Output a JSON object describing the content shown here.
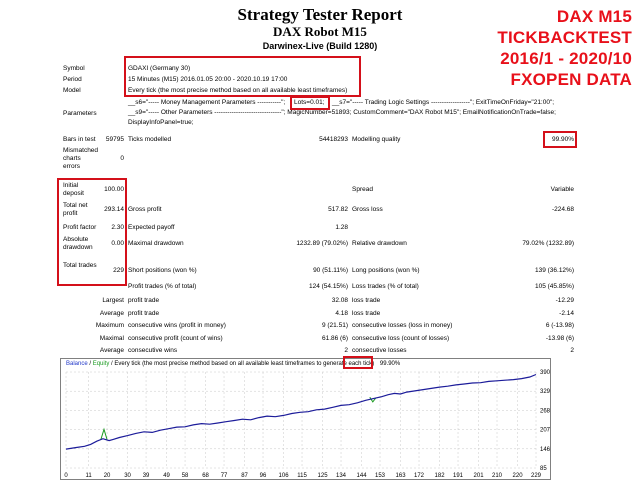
{
  "header": {
    "title": "Strategy Tester Report",
    "robot": "DAX Robot M15",
    "server": "Darwinex-Live (Build 1280)"
  },
  "overlay": [
    "DAX M15",
    "TICKBACKTEST",
    "2016/1 - 2020/10",
    "FXOPEN DATA"
  ],
  "settings": {
    "symbol_label": "Symbol",
    "symbol": "GDAXI (Germany 30)",
    "period_label": "Period",
    "period": "15 Minutes (M15) 2016.01.05 20:00 - 2020.10.19 17:00",
    "model_label": "Model",
    "model": "Every tick (the most precise method based on all available least timeframes)",
    "parameters_label": "Parameters",
    "params_line1_a": "__s6=\"----- Money Management Parameters -----------\";",
    "params_lots": "Lots=0.01;",
    "params_line1_b": "__s7=\"----- Trading Logic Settings ------------------\"; ExitTimeOnFriday=\"21:00\";",
    "params_line2": "__s9=\"----- Other Parameters -------------------------------\"; MagicNumber=51893; CustomComment=\"DAX Robot M15\"; EmailNotificationOnTrade=false;",
    "params_line3": "DisplayInfoPanel=true;"
  },
  "stats": {
    "bars_label": "Bars in test",
    "bars": "59795",
    "ticks_label": "Ticks modelled",
    "ticks": "54418293",
    "quality_label": "Modelling quality",
    "quality": "99.90%",
    "mismatched_label": "Mismatched charts errors",
    "mismatched": "0",
    "initial_deposit_label": "Initial deposit",
    "initial_deposit": "100.00",
    "spread_label": "Spread",
    "spread": "Variable",
    "net_profit_label": "Total net profit",
    "net_profit": "293.14",
    "gross_profit_label": "Gross profit",
    "gross_profit": "517.82",
    "gross_loss_label": "Gross loss",
    "gross_loss": "-224.68",
    "profit_factor_label": "Profit factor",
    "profit_factor": "2.30",
    "expected_payoff_label": "Expected payoff",
    "expected_payoff": "1.28",
    "abs_drawdown_label": "Absolute drawdown",
    "abs_drawdown": "0.00",
    "max_drawdown_label": "Maximal drawdown",
    "max_drawdown": "1232.89 (79.02%)",
    "rel_drawdown_label": "Relative drawdown",
    "rel_drawdown": "79.02% (1232.89)",
    "total_trades_label": "Total trades",
    "total_trades": "229",
    "short_label": "Short positions (won %)",
    "short": "90 (51.11%)",
    "long_label": "Long positions (won %)",
    "long": "139 (36.12%)",
    "profit_trades_label": "Profit trades (% of total)",
    "profit_trades": "124 (54.15%)",
    "loss_trades_label": "Loss trades (% of total)",
    "loss_trades": "105 (45.85%)",
    "largest_label": "Largest",
    "largest_profit_label": "profit trade",
    "largest_profit": "32.08",
    "largest_loss_label": "loss trade",
    "largest_loss": "-12.29",
    "average_label": "Average",
    "avg_profit_label": "profit trade",
    "avg_profit": "4.18",
    "avg_loss_label": "loss trade",
    "avg_loss": "-2.14",
    "maximum_label": "Maximum",
    "max_cons_wins_label": "consecutive wins (profit in money)",
    "max_cons_wins": "9 (21.51)",
    "max_cons_losses_label": "consecutive losses (loss in money)",
    "max_cons_losses": "6 (-13.98)",
    "maximal_label": "Maximal",
    "maximal_cons_profit_label": "consecutive profit (count of wins)",
    "maximal_cons_profit": "61.86 (6)",
    "maximal_cons_loss_label": "consecutive loss (count of losses)",
    "maximal_cons_loss": "-13.98 (6)",
    "average2_label": "Average",
    "avg_cons_wins_label": "consecutive wins",
    "avg_cons_wins": "2",
    "avg_cons_losses_label": "consecutive losses",
    "avg_cons_losses": "2"
  },
  "chart_data": {
    "type": "line",
    "caption_balance": "Balance",
    "caption_sep": " / ",
    "caption_equity": "Equity",
    "caption_rest": " / Every tick (the most precise method based on all available least timeframes to generate each tick)",
    "caption_quality": "99.90%",
    "colors": {
      "balance": "#1c1c9a",
      "equity": "#1a9a20",
      "grid": "#c8c8c8"
    },
    "ylim": [
      85,
      390
    ],
    "y_ticks": [
      85,
      146,
      207,
      268,
      329,
      390
    ],
    "xlim": [
      0,
      229
    ],
    "x_ticks": [
      0,
      11,
      20,
      30,
      39,
      49,
      58,
      68,
      77,
      87,
      96,
      106,
      115,
      125,
      134,
      144,
      153,
      163,
      172,
      182,
      191,
      201,
      210,
      220,
      229
    ],
    "balance": [
      [
        0,
        145
      ],
      [
        5,
        150
      ],
      [
        9,
        154
      ],
      [
        12,
        160
      ],
      [
        15,
        170
      ],
      [
        18,
        178
      ],
      [
        21,
        172
      ],
      [
        23,
        176
      ],
      [
        26,
        182
      ],
      [
        30,
        188
      ],
      [
        34,
        195
      ],
      [
        38,
        200
      ],
      [
        42,
        198
      ],
      [
        46,
        205
      ],
      [
        50,
        210
      ],
      [
        54,
        215
      ],
      [
        58,
        216
      ],
      [
        62,
        222
      ],
      [
        66,
        226
      ],
      [
        70,
        224
      ],
      [
        74,
        228
      ],
      [
        78,
        232
      ],
      [
        82,
        236
      ],
      [
        86,
        240
      ],
      [
        90,
        238
      ],
      [
        94,
        245
      ],
      [
        98,
        250
      ],
      [
        102,
        248
      ],
      [
        106,
        252
      ],
      [
        110,
        258
      ],
      [
        114,
        262
      ],
      [
        118,
        264
      ],
      [
        122,
        270
      ],
      [
        126,
        272
      ],
      [
        130,
        278
      ],
      [
        134,
        284
      ],
      [
        138,
        286
      ],
      [
        142,
        292
      ],
      [
        146,
        300
      ],
      [
        150,
        306
      ],
      [
        154,
        312
      ],
      [
        157,
        318
      ],
      [
        160,
        322
      ],
      [
        163,
        320
      ],
      [
        166,
        326
      ],
      [
        170,
        330
      ],
      [
        174,
        334
      ],
      [
        178,
        338
      ],
      [
        182,
        342
      ],
      [
        186,
        345
      ],
      [
        190,
        349
      ],
      [
        194,
        352
      ],
      [
        198,
        355
      ],
      [
        202,
        356
      ],
      [
        206,
        360
      ],
      [
        210,
        362
      ],
      [
        214,
        364
      ],
      [
        218,
        366
      ],
      [
        222,
        369
      ],
      [
        226,
        374
      ],
      [
        229,
        382
      ]
    ],
    "equity_spikes": [
      [
        [
          17,
          176
        ],
        [
          18.5,
          208
        ],
        [
          20,
          176
        ]
      ],
      [
        [
          148,
          310
        ],
        [
          149.5,
          295
        ],
        [
          151,
          308
        ]
      ]
    ]
  }
}
